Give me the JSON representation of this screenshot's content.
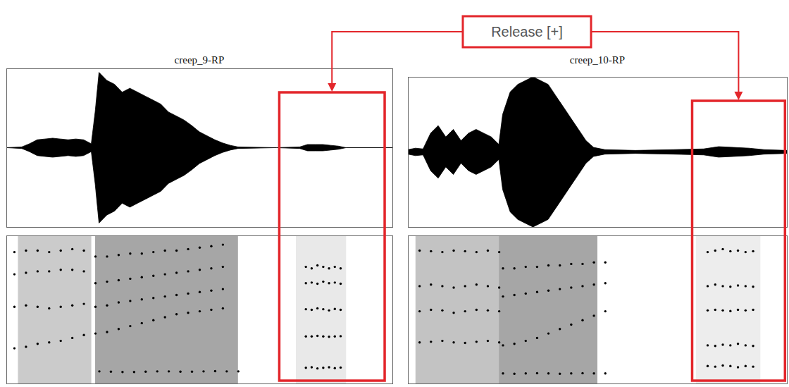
{
  "annotation": {
    "text": "Release [+]",
    "color": "#e3262b"
  },
  "chart_data": [
    {
      "type": "waveform_spectrogram",
      "title": "creep_9-RP",
      "tick_labels": false,
      "xlim": [
        0,
        1
      ],
      "ylim": [
        -1,
        1
      ],
      "release": [
        0.707,
        0.98
      ],
      "waveform": {
        "color": "#000000",
        "x": [
          0,
          0.04,
          0.06,
          0.08,
          0.1,
          0.12,
          0.14,
          0.16,
          0.18,
          0.2,
          0.22,
          0.23,
          0.24,
          0.26,
          0.28,
          0.3,
          0.32,
          0.34,
          0.36,
          0.38,
          0.4,
          0.42,
          0.44,
          0.46,
          0.48,
          0.5,
          0.52,
          0.54,
          0.56,
          0.58,
          0.6,
          0.7,
          0.76,
          0.78,
          0.8,
          0.82,
          0.84,
          0.86,
          0.88,
          1.0
        ],
        "values": [
          0,
          0.01,
          0.05,
          0.1,
          0.11,
          0.12,
          0.11,
          0.1,
          0.11,
          0.1,
          0.05,
          0.45,
          0.95,
          0.85,
          0.8,
          0.7,
          0.75,
          0.7,
          0.65,
          0.6,
          0.55,
          0.45,
          0.4,
          0.35,
          0.28,
          0.2,
          0.15,
          0.1,
          0.06,
          0.03,
          0.01,
          0,
          0.01,
          0.04,
          0.04,
          0.04,
          0.03,
          0.02,
          0,
          0
        ]
      },
      "spectrogram": {
        "ylim": [
          0,
          5000
        ],
        "color": "#000000",
        "marker": "dot",
        "energy": {
          "x1": [
            0.03,
            0.23,
            0.75
          ],
          "x2": [
            0.22,
            0.6,
            0.88
          ],
          "values": [
            0.35,
            0.6,
            0.15
          ]
        },
        "tracks": [
          {
            "x": [
              0.24,
              0.27,
              0.3,
              0.33,
              0.36,
              0.39,
              0.42,
              0.45,
              0.48,
              0.51,
              0.54,
              0.57,
              0.6
            ],
            "values": [
              420,
              410,
              400,
              400,
              410,
              420,
              420,
              410,
              410,
              420,
              430,
              420,
              420
            ]
          },
          {
            "x": [
              0.02,
              0.05,
              0.08,
              0.11,
              0.14,
              0.17,
              0.2,
              0.23,
              0.26,
              0.29,
              0.32,
              0.35,
              0.38,
              0.41,
              0.44,
              0.47,
              0.5,
              0.53,
              0.56
            ],
            "values": [
              1200,
              1250,
              1350,
              1400,
              1450,
              1550,
              1650,
              1700,
              1750,
              1850,
              1950,
              2050,
              2150,
              2250,
              2350,
              2400,
              2450,
              2500,
              2550
            ]
          },
          {
            "x": [
              0.02,
              0.05,
              0.08,
              0.11,
              0.14,
              0.17,
              0.2,
              0.23,
              0.26,
              0.29,
              0.32,
              0.35,
              0.38,
              0.41,
              0.44,
              0.47,
              0.5,
              0.53,
              0.56
            ],
            "values": [
              2600,
              2650,
              2600,
              2550,
              2600,
              2650,
              2700,
              2600,
              2650,
              2750,
              2800,
              2850,
              2900,
              2950,
              3000,
              3050,
              3100,
              3150,
              3200
            ]
          },
          {
            "x": [
              0.02,
              0.05,
              0.08,
              0.11,
              0.14,
              0.17,
              0.2,
              0.23,
              0.26,
              0.29,
              0.32,
              0.35,
              0.38,
              0.41,
              0.44,
              0.47,
              0.5,
              0.53,
              0.56
            ],
            "values": [
              3700,
              3750,
              3800,
              3800,
              3850,
              3850,
              3800,
              3400,
              3450,
              3500,
              3550,
              3600,
              3650,
              3700,
              3750,
              3800,
              3850,
              3900,
              3950
            ]
          },
          {
            "x": [
              0.02,
              0.05,
              0.08,
              0.11,
              0.14,
              0.17,
              0.2,
              0.23,
              0.26,
              0.29,
              0.32,
              0.35,
              0.38,
              0.41,
              0.44,
              0.47,
              0.5,
              0.53,
              0.56
            ],
            "values": [
              4450,
              4500,
              4500,
              4450,
              4500,
              4550,
              4500,
              4300,
              4300,
              4350,
              4400,
              4400,
              4450,
              4500,
              4500,
              4550,
              4600,
              4650,
              4700
            ]
          },
          {
            "x": [
              0.775,
              0.79,
              0.805,
              0.82,
              0.835,
              0.85,
              0.865
            ],
            "values": [
              3950,
              3900,
              4000,
              3950,
              3900,
              3950,
              3900
            ]
          },
          {
            "x": [
              0.775,
              0.79,
              0.805,
              0.82,
              0.835,
              0.85,
              0.865
            ],
            "values": [
              3400,
              3420,
              3380,
              3450,
              3400,
              3420,
              3380
            ]
          },
          {
            "x": [
              0.775,
              0.79,
              0.805,
              0.82,
              0.835,
              0.85,
              0.865
            ],
            "values": [
              2520,
              2500,
              2550,
              2520,
              2480,
              2530,
              2500
            ]
          },
          {
            "x": [
              0.775,
              0.79,
              0.805,
              0.82,
              0.835,
              0.85,
              0.865
            ],
            "values": [
              1600,
              1600,
              1620,
              1600,
              1590,
              1600,
              1610
            ]
          },
          {
            "x": [
              0.775,
              0.79,
              0.805,
              0.82,
              0.835,
              0.85,
              0.865
            ],
            "values": [
              540,
              560,
              520,
              540,
              560,
              530,
              550
            ]
          }
        ]
      }
    },
    {
      "type": "waveform_spectrogram",
      "title": "creep_10-RP",
      "tick_labels": false,
      "xlim": [
        0,
        1
      ],
      "ylim": [
        -1,
        1
      ],
      "release": [
        0.75,
        0.995
      ],
      "waveform": {
        "color": "#000000",
        "x": [
          0,
          0.02,
          0.04,
          0.06,
          0.08,
          0.1,
          0.12,
          0.14,
          0.16,
          0.18,
          0.2,
          0.22,
          0.24,
          0.25,
          0.27,
          0.29,
          0.31,
          0.33,
          0.35,
          0.37,
          0.39,
          0.41,
          0.43,
          0.45,
          0.47,
          0.49,
          0.52,
          0.6,
          0.7,
          0.78,
          0.82,
          0.86,
          0.9,
          0.94,
          1.0
        ],
        "values": [
          0.03,
          0.05,
          0.04,
          0.25,
          0.35,
          0.2,
          0.3,
          0.15,
          0.25,
          0.3,
          0.25,
          0.2,
          0.1,
          0.5,
          0.8,
          0.9,
          0.95,
          1.0,
          0.95,
          0.9,
          0.75,
          0.6,
          0.45,
          0.3,
          0.15,
          0.06,
          0.03,
          0.02,
          0.03,
          0.04,
          0.07,
          0.06,
          0.05,
          0.03,
          0.02
        ]
      },
      "spectrogram": {
        "ylim": [
          0,
          5000
        ],
        "color": "#000000",
        "marker": "dot",
        "energy": {
          "x1": [
            0.02,
            0.24,
            0.76
          ],
          "x2": [
            0.24,
            0.5,
            0.93
          ],
          "values": [
            0.4,
            0.6,
            0.12
          ]
        },
        "tracks": [
          {
            "x": [
              0.03,
              0.06,
              0.09,
              0.12,
              0.15,
              0.18,
              0.21,
              0.24
            ],
            "values": [
              4500,
              4480,
              4450,
              4500,
              4480,
              4450,
              4500,
              4450
            ]
          },
          {
            "x": [
              0.03,
              0.06,
              0.09,
              0.12,
              0.15,
              0.18,
              0.21,
              0.24
            ],
            "values": [
              3300,
              3350,
              3300,
              3250,
              3300,
              3350,
              3300,
              3250
            ]
          },
          {
            "x": [
              0.03,
              0.06,
              0.09,
              0.12,
              0.15,
              0.18,
              0.21,
              0.24
            ],
            "values": [
              2450,
              2500,
              2480,
              2400,
              2450,
              2500,
              2480,
              2450
            ]
          },
          {
            "x": [
              0.03,
              0.06,
              0.09,
              0.12,
              0.15,
              0.18,
              0.21,
              0.24
            ],
            "values": [
              1400,
              1420,
              1450,
              1400,
              1380,
              1420,
              1450,
              1400
            ]
          },
          {
            "x": [
              0.25,
              0.28,
              0.31,
              0.34,
              0.37,
              0.4,
              0.43,
              0.46,
              0.49,
              0.52
            ],
            "values": [
              350,
              340,
              350,
              360,
              350,
              340,
              350,
              360,
              350,
              350
            ]
          },
          {
            "x": [
              0.25,
              0.28,
              0.31,
              0.34,
              0.37,
              0.4,
              0.43,
              0.46,
              0.49,
              0.52
            ],
            "values": [
              1300,
              1350,
              1450,
              1550,
              1700,
              1850,
              2000,
              2150,
              2300,
              2450
            ]
          },
          {
            "x": [
              0.25,
              0.28,
              0.31,
              0.34,
              0.37,
              0.4,
              0.43,
              0.46,
              0.49,
              0.52
            ],
            "values": [
              2950,
              3000,
              3050,
              3100,
              3150,
              3200,
              3250,
              3300,
              3350,
              3400
            ]
          },
          {
            "x": [
              0.25,
              0.28,
              0.31,
              0.34,
              0.37,
              0.4,
              0.43,
              0.46,
              0.49,
              0.52
            ],
            "values": [
              3900,
              3900,
              3950,
              3950,
              4000,
              4000,
              4050,
              4050,
              4100,
              4100
            ]
          },
          {
            "x": [
              0.79,
              0.81,
              0.83,
              0.85,
              0.87,
              0.89,
              0.91
            ],
            "values": [
              4450,
              4500,
              4550,
              4480,
              4500,
              4450,
              4480
            ]
          },
          {
            "x": [
              0.79,
              0.81,
              0.83,
              0.85,
              0.87,
              0.89,
              0.91
            ],
            "values": [
              3300,
              3350,
              3300,
              3280,
              3320,
              3300,
              3280
            ]
          },
          {
            "x": [
              0.79,
              0.81,
              0.83,
              0.85,
              0.87,
              0.89,
              0.91
            ],
            "values": [
              2480,
              2500,
              2480,
              2460,
              2500,
              2480,
              2500
            ]
          },
          {
            "x": [
              0.79,
              0.81,
              0.83,
              0.85,
              0.87,
              0.89,
              0.91
            ],
            "values": [
              1300,
              1280,
              1320,
              1300,
              1350,
              1300,
              1280
            ]
          },
          {
            "x": [
              0.79,
              0.81,
              0.83,
              0.85,
              0.87,
              0.89,
              0.91
            ],
            "values": [
              600,
              580,
              620,
              600,
              560,
              600,
              580
            ]
          }
        ]
      }
    }
  ]
}
